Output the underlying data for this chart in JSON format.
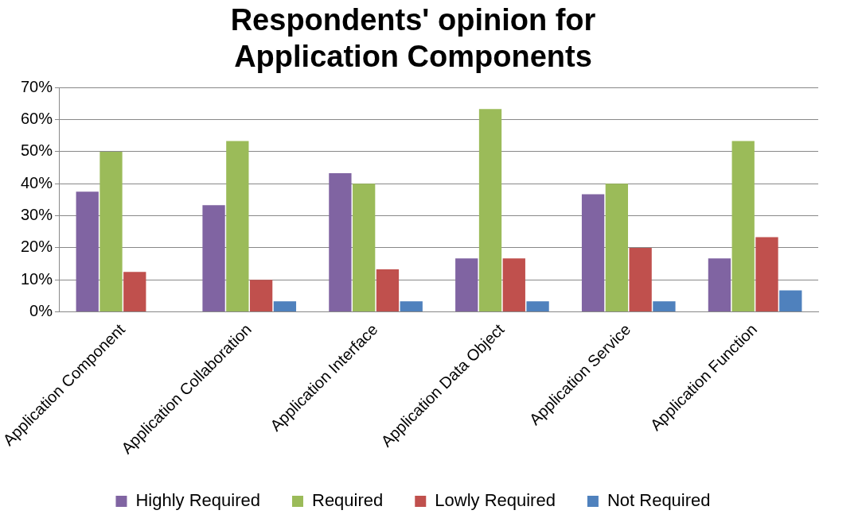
{
  "chart_data": {
    "type": "bar",
    "title": [
      "Respondents' opinion for",
      "Application Components"
    ],
    "categories": [
      "Application Component",
      "Application Collaboration",
      "Application Interface",
      "Application Data Object",
      "Application Service",
      "Application Function"
    ],
    "series": [
      {
        "name": "Highly Required",
        "color": "#8064a2",
        "values": [
          37.5,
          33.3,
          43.3,
          16.7,
          36.7,
          16.7
        ]
      },
      {
        "name": "Required",
        "color": "#9bbb59",
        "values": [
          50,
          53.3,
          40,
          63.3,
          40,
          53.3
        ]
      },
      {
        "name": "Lowly Required",
        "color": "#c0504d",
        "values": [
          12.5,
          10,
          13.3,
          16.7,
          20,
          23.3
        ]
      },
      {
        "name": "Not Required",
        "color": "#4f81bd",
        "values": [
          0,
          3.3,
          3.3,
          3.3,
          3.3,
          6.7
        ]
      }
    ],
    "ylim": [
      0,
      70
    ],
    "yticks": [
      {
        "value": 0,
        "label": "0%"
      },
      {
        "value": 10,
        "label": "10%"
      },
      {
        "value": 20,
        "label": "20%"
      },
      {
        "value": 30,
        "label": "30%"
      },
      {
        "value": 40,
        "label": "40%"
      },
      {
        "value": 50,
        "label": "50%"
      },
      {
        "value": 60,
        "label": "60%"
      },
      {
        "value": 70,
        "label": "70%"
      }
    ],
    "grid": "y",
    "legend": "bottom"
  }
}
